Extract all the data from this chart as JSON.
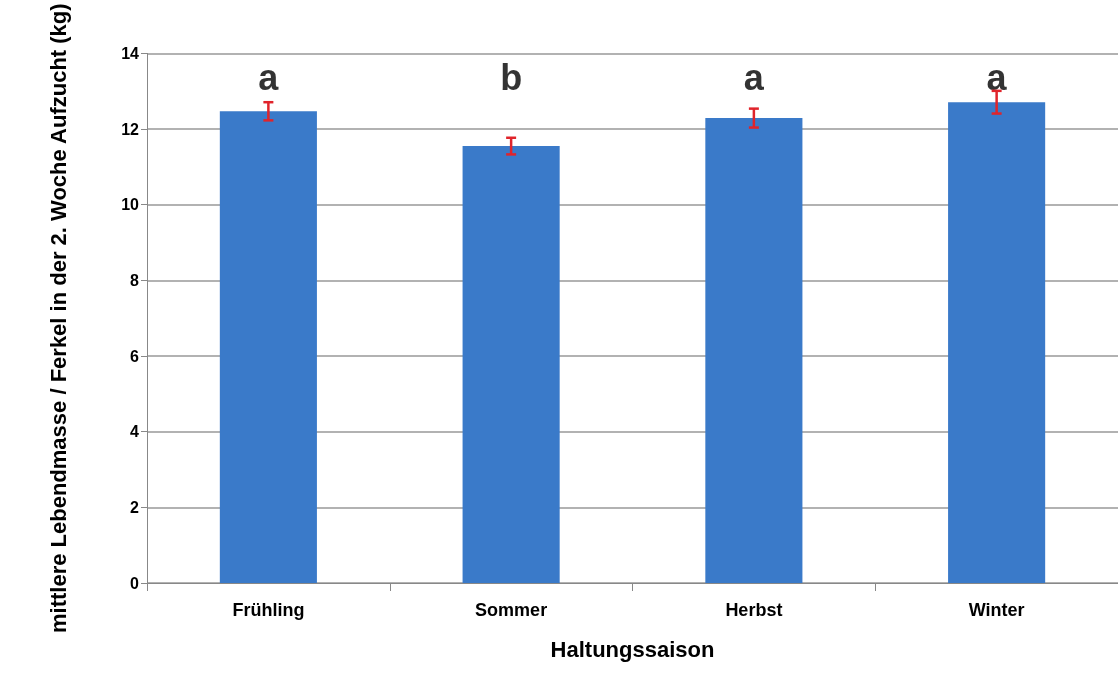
{
  "chart_data": {
    "type": "bar",
    "xlabel": "Haltungssaison",
    "ylabel": "mittlere Lebendmasse / Ferkel in der 2. Woche Aufzucht (kg)",
    "categories": [
      "Frühling",
      "Sommer",
      "Herbst",
      "Winter"
    ],
    "values": [
      12.47,
      11.55,
      12.29,
      12.71
    ],
    "errors": [
      0.24,
      0.22,
      0.25,
      0.3
    ],
    "color": "#3a7ac9",
    "ylim": [
      0,
      14
    ],
    "yticks": [
      0,
      2,
      4,
      6,
      8,
      10,
      12,
      14
    ],
    "grid": "y",
    "annotations": [
      "a",
      "b",
      "a",
      "a"
    ]
  }
}
